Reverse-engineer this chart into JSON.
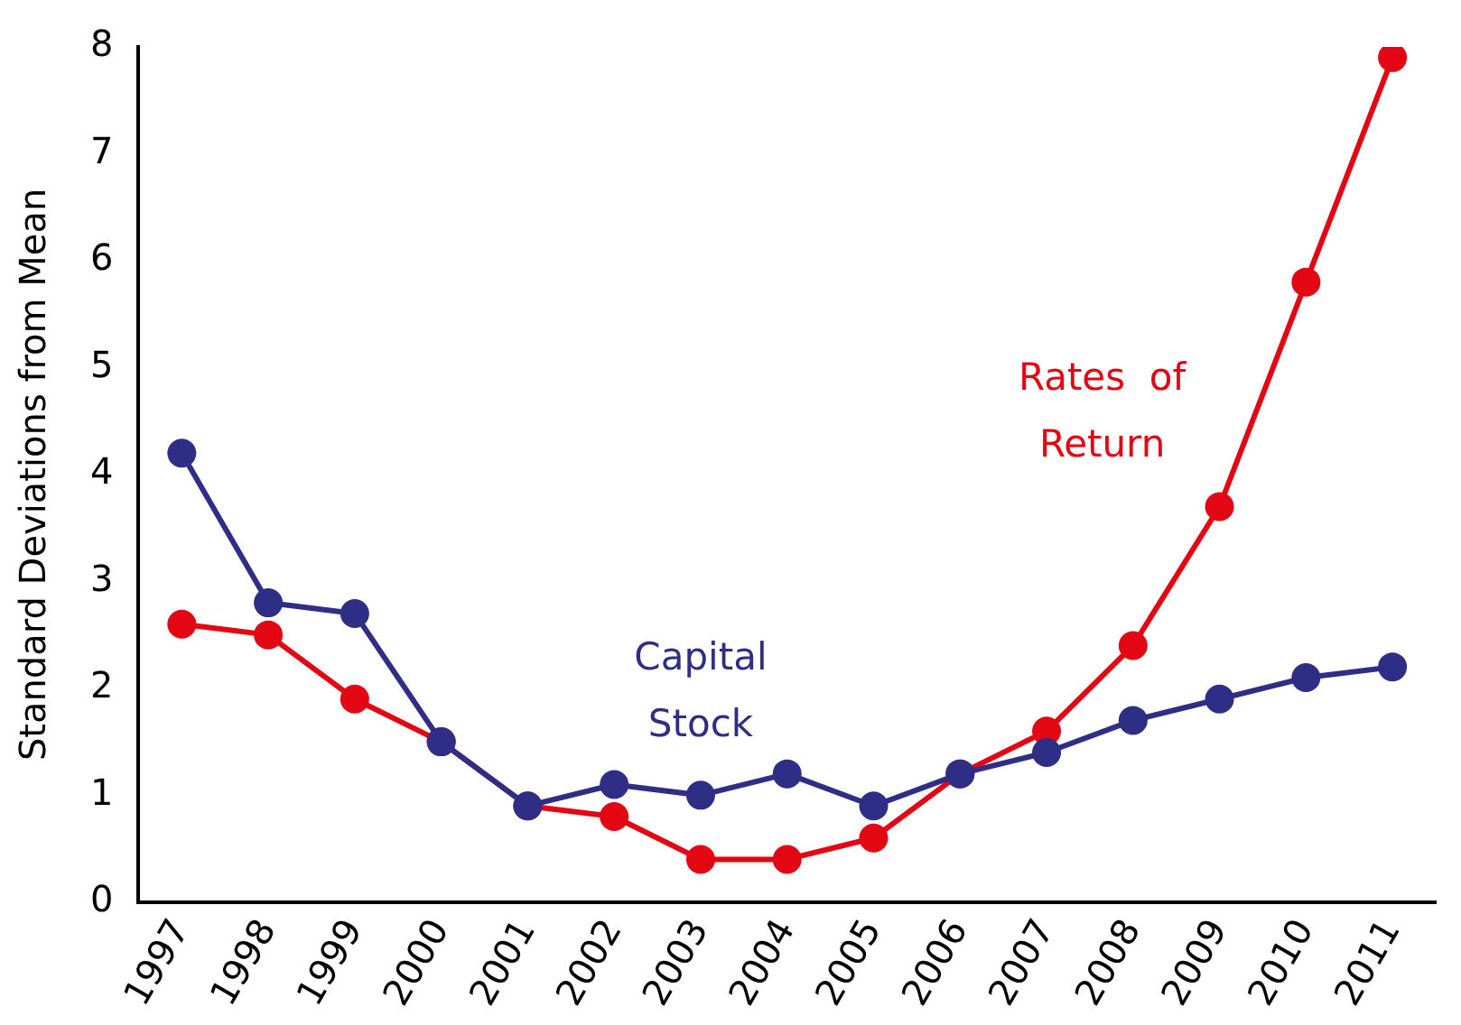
{
  "chart_data": {
    "type": "line",
    "ylabel": "Standard Deviations from Mean",
    "categories": [
      "1997",
      "1998",
      "1999",
      "2000",
      "2001",
      "2002",
      "2003",
      "2004",
      "2005",
      "2006",
      "2007",
      "2008",
      "2009",
      "2010",
      "2011"
    ],
    "series": [
      {
        "name": "Capital Stock",
        "color": "#2e2e86",
        "values": [
          4.2,
          2.8,
          2.7,
          1.5,
          0.9,
          1.1,
          1.0,
          1.2,
          0.9,
          1.2,
          1.4,
          1.7,
          1.9,
          2.1,
          2.2
        ]
      },
      {
        "name": "Rates of Return",
        "color": "#e30613",
        "values": [
          2.6,
          2.5,
          1.9,
          1.5,
          0.9,
          0.8,
          0.4,
          0.4,
          0.6,
          1.2,
          1.6,
          2.4,
          3.7,
          5.8,
          7.9
        ]
      }
    ],
    "ylim": [
      0,
      8
    ],
    "yticks": [
      0,
      1,
      2,
      3,
      4,
      5,
      6,
      7,
      8
    ],
    "grid": false,
    "legend": false,
    "marker": "circle",
    "line_style": "solid"
  }
}
